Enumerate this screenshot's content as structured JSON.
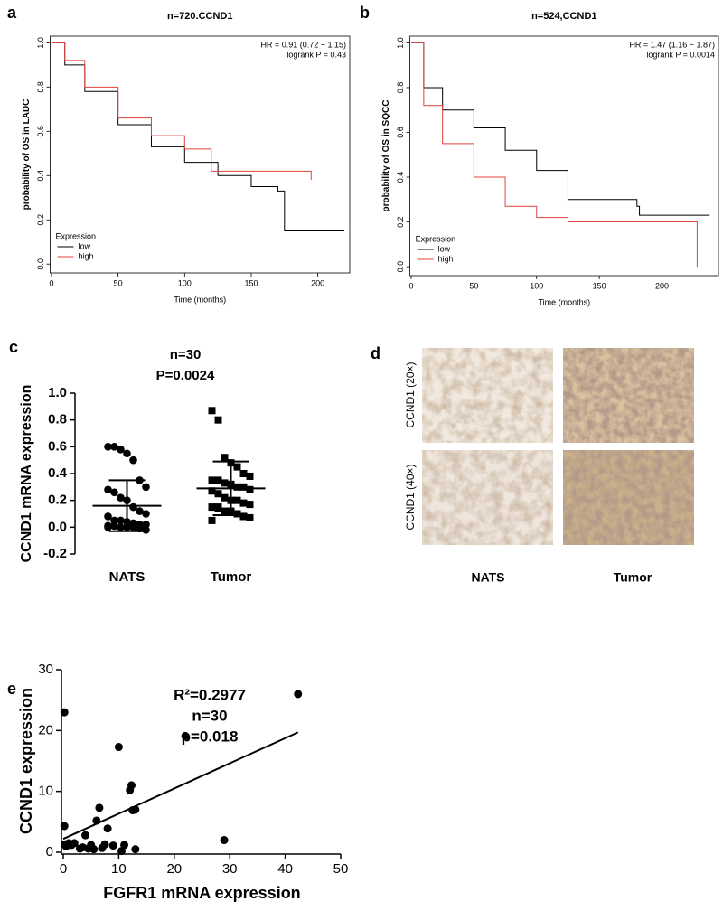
{
  "chart_data": [
    {
      "panel": "a",
      "type": "line",
      "step": true,
      "title": "n=720.CCND1",
      "xlabel": "Time (months)",
      "ylabel": "probability of OS in LADC",
      "xlim": [
        -1,
        224
      ],
      "ylim": [
        -0.04,
        1.03
      ],
      "xticks": [
        0,
        50,
        100,
        150,
        200
      ],
      "yticks": [
        {
          "value": 0,
          "label": "0.0"
        },
        0.2,
        0.4,
        0.6,
        0.8,
        {
          "value": 1,
          "label": "1.0"
        }
      ],
      "annotations": [
        "HR = 0.91 (0.72 − 1.15)",
        "logrank P = 0.43"
      ],
      "legend_title": "Expression",
      "legend": "lower left",
      "series": [
        {
          "name": "low",
          "color": "#000000",
          "x": [
            0,
            10,
            25,
            50,
            75,
            100,
            125,
            150,
            170,
            175,
            220
          ],
          "values": [
            1,
            0.9,
            0.78,
            0.63,
            0.53,
            0.46,
            0.4,
            0.35,
            0.33,
            0.15,
            0.15
          ]
        },
        {
          "name": "high",
          "color": "#e0433a",
          "x": [
            0,
            10,
            25,
            50,
            75,
            100,
            120,
            195
          ],
          "values": [
            1,
            0.92,
            0.8,
            0.66,
            0.58,
            0.52,
            0.42,
            0.38
          ]
        }
      ]
    },
    {
      "panel": "b",
      "type": "line",
      "step": true,
      "title": "n=524,CCND1",
      "xlabel": "Time (months)",
      "ylabel": "probability of OS in SQCC",
      "xlim": [
        -1,
        245
      ],
      "ylim": [
        -0.04,
        1.03
      ],
      "xticks": [
        0,
        50,
        100,
        150,
        200
      ],
      "yticks": [
        {
          "value": 0,
          "label": "0.0"
        },
        0.2,
        0.4,
        0.6,
        0.8,
        {
          "value": 1,
          "label": "1.0"
        }
      ],
      "annotations": [
        "HR = 1.47 (1.16 − 1.87)",
        "logrank P = 0.0014"
      ],
      "legend_title": "Expression",
      "legend": "lower left",
      "series": [
        {
          "name": "low",
          "color": "#000000",
          "x": [
            0,
            10,
            25,
            50,
            75,
            100,
            125,
            180,
            182,
            238
          ],
          "values": [
            1,
            0.8,
            0.7,
            0.62,
            0.52,
            0.43,
            0.3,
            0.27,
            0.23,
            0.23
          ]
        },
        {
          "name": "high",
          "color": "#e0433a",
          "x": [
            0,
            10,
            25,
            50,
            75,
            100,
            125,
            228,
            228
          ],
          "values": [
            1,
            0.72,
            0.55,
            0.4,
            0.27,
            0.22,
            0.2,
            0.2,
            0
          ]
        }
      ]
    },
    {
      "panel": "c",
      "type": "strip",
      "title": [
        "n=30",
        "P=0.0024"
      ],
      "ylabel": "CCND1 mRNA expression",
      "ylim": [
        -0.2,
        1.0
      ],
      "yticks": [
        -0.2,
        {
          "value": 0,
          "label": "0.0"
        },
        0.2,
        0.4,
        0.6,
        0.8,
        {
          "value": 1,
          "label": "1.0"
        }
      ],
      "categories": [
        "NATS",
        "Tumor"
      ],
      "markers": [
        "circle",
        "square"
      ],
      "color": "#000000",
      "values": [
        [
          0.6,
          0.6,
          0.58,
          0.55,
          0.5,
          0.35,
          0.3,
          0.28,
          0.26,
          0.22,
          0.2,
          0.15,
          0.12,
          0.1,
          0.08,
          0.05,
          0.05,
          0.04,
          0.03,
          0.02,
          0.02,
          0.01,
          0.01,
          0.0,
          0.0,
          0.0,
          -0.01,
          -0.02,
          0.0,
          0.01
        ],
        [
          0.87,
          0.8,
          0.52,
          0.48,
          0.45,
          0.4,
          0.38,
          0.35,
          0.35,
          0.33,
          0.32,
          0.3,
          0.3,
          0.28,
          0.27,
          0.25,
          0.22,
          0.2,
          0.2,
          0.18,
          0.17,
          0.15,
          0.14,
          0.12,
          0.12,
          0.1,
          0.08,
          0.07,
          0.05,
          0.15
        ]
      ],
      "means": [
        0.16,
        0.29
      ],
      "sds": [
        0.19,
        0.2
      ]
    },
    {
      "panel": "e",
      "type": "scatter",
      "title": [
        "R²=0.2977",
        "n=30",
        "p=0.018"
      ],
      "xlabel": "FGFR1 mRNA expression",
      "ylabel": "CCND1 expression",
      "xlim": [
        0,
        50
      ],
      "ylim": [
        0,
        30
      ],
      "xticks": [
        0,
        10,
        20,
        30,
        40,
        50
      ],
      "yticks": [
        0,
        10,
        20,
        30
      ],
      "color": "#000000",
      "x": [
        0.2,
        0.2,
        0.3,
        0.5,
        1,
        1.5,
        2,
        3,
        4,
        4.5,
        5,
        5.5,
        6,
        6.5,
        7,
        7.5,
        8,
        9,
        10,
        11,
        10.5,
        12,
        12.3,
        12.5,
        13,
        13,
        22,
        29,
        42.3,
        3.5
      ],
      "values": [
        23,
        4.3,
        1.3,
        1,
        1.5,
        1.2,
        1.5,
        0.6,
        2.8,
        0.6,
        1.2,
        0.5,
        5.2,
        7.3,
        0.7,
        1.3,
        3.9,
        1.1,
        17.3,
        1.2,
        0.2,
        10.2,
        11,
        6.9,
        7,
        0.5,
        19.1,
        2,
        26,
        0.8
      ],
      "fit": {
        "x": [
          0,
          42.3
        ],
        "values": [
          2.2,
          19.7
        ]
      }
    }
  ],
  "image_panel": {
    "panel": "d",
    "row_labels": [
      "CCND1 (20×)",
      "CCND1 (40×)"
    ],
    "col_labels": [
      "NATS",
      "Tumor"
    ]
  }
}
